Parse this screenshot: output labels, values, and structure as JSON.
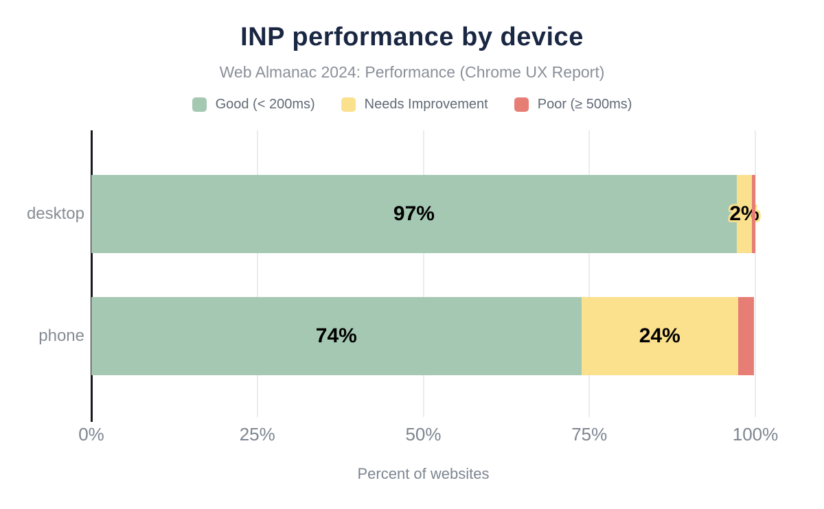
{
  "chart_data": {
    "type": "bar",
    "orientation": "horizontal",
    "stacked": true,
    "title": "INP performance by device",
    "subtitle": "Web Almanac 2024: Performance (Chrome UX Report)",
    "xlabel": "Percent of websites",
    "categories": [
      "desktop",
      "phone"
    ],
    "series": [
      {
        "name": "Good (< 200ms)",
        "color": "#a5c8b3",
        "values": [
          97,
          74
        ],
        "labels": [
          "97%",
          "74%"
        ]
      },
      {
        "name": "Needs Improvement",
        "color": "#fbe08d",
        "values": [
          2,
          24
        ],
        "labels": [
          "2%",
          "24%"
        ]
      },
      {
        "name": "Poor (≥ 500ms)",
        "color": "#e77e75",
        "values": [
          1,
          2
        ],
        "labels": [
          "",
          ""
        ]
      }
    ],
    "segment_widths_pct": {
      "desktop": [
        97.2,
        2.3,
        0.5
      ],
      "phone": [
        73.8,
        23.6,
        2.4
      ]
    },
    "x_ticks": [
      "0%",
      "25%",
      "50%",
      "75%",
      "100%"
    ],
    "xlim": [
      0,
      100
    ],
    "grid": "vertical",
    "legend_position": "top"
  },
  "layout_colors": {
    "title": "#1a2742",
    "subtitle": "#8a8f98",
    "axis_line": "#17181c",
    "gridline": "#e9ebee",
    "tick_label": "#7d8591",
    "bar_label": "#000000"
  }
}
